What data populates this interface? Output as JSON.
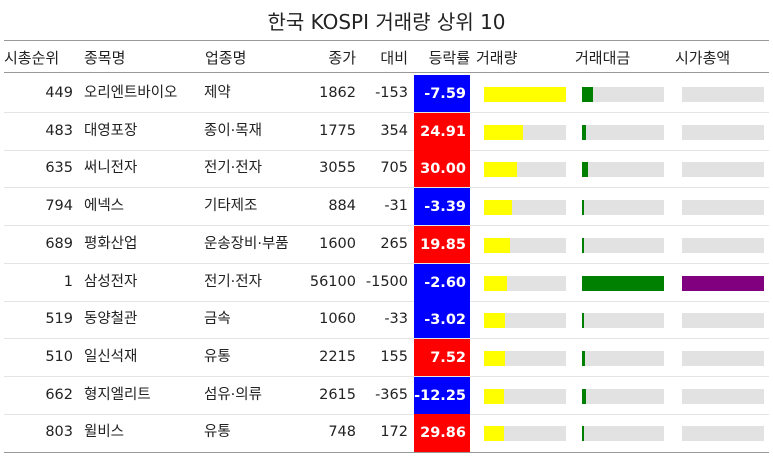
{
  "chart_data": {
    "type": "table",
    "title": "한국 KOSPI 거래량 상위 10",
    "columns": [
      "시총순위",
      "종목명",
      "업종명",
      "종가",
      "대비",
      "등락률",
      "거래량",
      "거래대금",
      "시가총액"
    ],
    "rows": [
      {
        "rank": "449",
        "name": "오리엔트바이오",
        "sector": "제약",
        "close": "1862",
        "change": "-153",
        "pct": "-7.59",
        "volume": 1.0,
        "amount": 0.14,
        "mcap": 0.0
      },
      {
        "rank": "483",
        "name": "대영포장",
        "sector": "종이·목재",
        "close": "1775",
        "change": "354",
        "pct": "24.91",
        "volume": 0.48,
        "amount": 0.05,
        "mcap": 0.0
      },
      {
        "rank": "635",
        "name": "써니전자",
        "sector": "전기·전자",
        "close": "3055",
        "change": "705",
        "pct": "30.00",
        "volume": 0.4,
        "amount": 0.07,
        "mcap": 0.0
      },
      {
        "rank": "794",
        "name": "에넥스",
        "sector": "기타제조",
        "close": "884",
        "change": "-31",
        "pct": "-3.39",
        "volume": 0.34,
        "amount": 0.02,
        "mcap": 0.0
      },
      {
        "rank": "689",
        "name": "평화산업",
        "sector": "운송장비·부품",
        "close": "1600",
        "change": "265",
        "pct": "19.85",
        "volume": 0.32,
        "amount": 0.03,
        "mcap": 0.0
      },
      {
        "rank": "1",
        "name": "삼성전자",
        "sector": "전기·전자",
        "close": "56100",
        "change": "-1500",
        "pct": "-2.60",
        "volume": 0.28,
        "amount": 1.0,
        "mcap": 1.0
      },
      {
        "rank": "519",
        "name": "동양철관",
        "sector": "금속",
        "close": "1060",
        "change": "-33",
        "pct": "-3.02",
        "volume": 0.26,
        "amount": 0.02,
        "mcap": 0.0
      },
      {
        "rank": "510",
        "name": "일신석재",
        "sector": "유통",
        "close": "2215",
        "change": "155",
        "pct": "7.52",
        "volume": 0.25,
        "amount": 0.04,
        "mcap": 0.0
      },
      {
        "rank": "662",
        "name": "형지엘리트",
        "sector": "섬유·의류",
        "close": "2615",
        "change": "-365",
        "pct": "-12.25",
        "volume": 0.24,
        "amount": 0.05,
        "mcap": 0.0
      },
      {
        "rank": "803",
        "name": "윌비스",
        "sector": "유통",
        "close": "748",
        "change": "172",
        "pct": "29.86",
        "volume": 0.24,
        "amount": 0.02,
        "mcap": 0.0
      }
    ]
  },
  "colors": {
    "up": "#ff0000",
    "down": "#0000ff",
    "volume_bar": "#ffff00",
    "amount_bar": "#008000",
    "mcap_bar": "#800080",
    "track": "#e2e2e2"
  }
}
